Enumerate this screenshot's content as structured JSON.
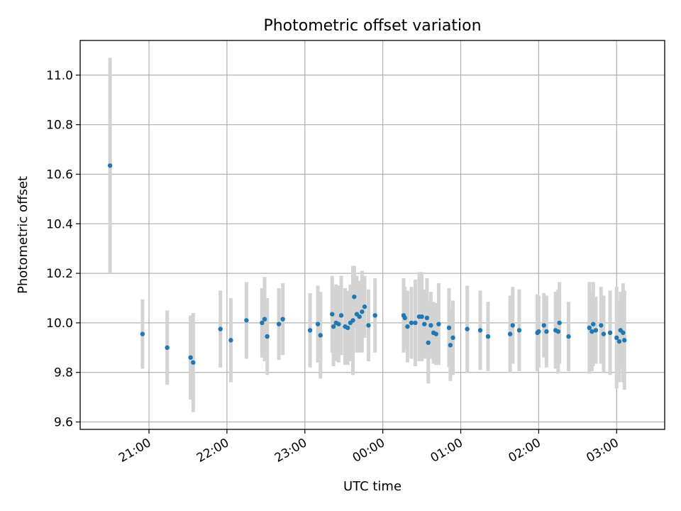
{
  "chart_data": {
    "type": "scatter",
    "title": "Photometric offset variation",
    "xlabel": "UTC time",
    "ylabel": "Photometric offset",
    "grid": true,
    "ylim": [
      9.57,
      11.14
    ],
    "xlim": [
      "20:07",
      "03:37"
    ],
    "x_ticks": [
      "21:00",
      "22:00",
      "23:00",
      "00:00",
      "01:00",
      "02:00",
      "03:00"
    ],
    "y_ticks": [
      "9.6",
      "9.8",
      "10.0",
      "10.2",
      "10.4",
      "10.6",
      "10.8",
      "11.0"
    ],
    "colors": {
      "point": "#1f77b4",
      "errorbar": "#d3d3d3",
      "grid": "#b0b0b0"
    },
    "series": [
      {
        "x": [
          "20:30",
          "20:55",
          "21:14",
          "21:32",
          "21:34",
          "21:55",
          "22:03",
          "22:15",
          "22:27",
          "22:29",
          "22:31",
          "22:40",
          "22:43",
          "23:04",
          "23:10",
          "23:12",
          "23:21",
          "23:22",
          "23:24",
          "23:26",
          "23:28",
          "23:31",
          "23:33",
          "23:35",
          "23:37",
          "23:38",
          "23:40",
          "23:42",
          "23:44",
          "23:46",
          "23:49",
          "23:54",
          "00:16",
          "00:17",
          "00:19",
          "00:22",
          "00:25",
          "00:28",
          "00:30",
          "00:32",
          "00:34",
          "00:35",
          "00:37",
          "00:39",
          "00:41",
          "00:43",
          "00:51",
          "00:52",
          "00:54",
          "01:05",
          "01:15",
          "01:21",
          "01:38",
          "01:40",
          "01:45",
          "01:59",
          "02:00",
          "02:04",
          "02:06",
          "02:13",
          "02:15",
          "02:16",
          "02:23",
          "02:39",
          "02:41",
          "02:42",
          "02:44",
          "02:48",
          "02:50",
          "02:55",
          "03:00",
          "03:02",
          "03:03",
          "03:05",
          "03:06"
        ],
        "y": [
          10.635,
          9.955,
          9.9,
          9.86,
          9.84,
          9.975,
          9.93,
          10.01,
          10.0,
          10.015,
          9.945,
          9.995,
          10.015,
          9.97,
          9.995,
          9.95,
          10.035,
          9.985,
          10.0,
          9.995,
          10.03,
          9.985,
          9.98,
          10.0,
          10.01,
          10.105,
          10.035,
          10.025,
          10.045,
          10.065,
          9.99,
          10.03,
          10.03,
          10.02,
          9.985,
          10.0,
          10.0,
          10.025,
          10.025,
          9.995,
          10.02,
          9.92,
          9.99,
          9.96,
          9.955,
          9.995,
          9.98,
          9.91,
          9.94,
          9.975,
          9.97,
          9.945,
          9.955,
          9.99,
          9.97,
          9.96,
          9.965,
          9.99,
          9.965,
          9.97,
          9.965,
          10.0,
          9.945,
          9.98,
          9.965,
          9.995,
          9.97,
          9.99,
          9.955,
          9.96,
          9.94,
          9.925,
          9.97,
          9.96,
          9.93
        ],
        "err": [
          0.435,
          0.14,
          0.15,
          0.17,
          0.2,
          0.155,
          0.17,
          0.155,
          0.14,
          0.17,
          0.155,
          0.145,
          0.145,
          0.15,
          0.155,
          0.175,
          0.155,
          0.16,
          0.155,
          0.155,
          0.16,
          0.155,
          0.15,
          0.155,
          0.22,
          0.125,
          0.155,
          0.145,
          0.165,
          0.125,
          0.145,
          0.15,
          0.15,
          0.125,
          0.145,
          0.145,
          0.175,
          0.18,
          0.18,
          0.14,
          0.16,
          0.165,
          0.135,
          0.125,
          0.125,
          0.165,
          0.16,
          0.145,
          0.15,
          0.175,
          0.16,
          0.14,
          0.155,
          0.155,
          0.165,
          0.155,
          0.145,
          0.13,
          0.145,
          0.155,
          0.17,
          0.165,
          0.14,
          0.185,
          0.16,
          0.17,
          0.135,
          0.155,
          0.155,
          0.17,
          0.205,
          0.165,
          0.155,
          0.2,
          0.2
        ]
      }
    ]
  }
}
